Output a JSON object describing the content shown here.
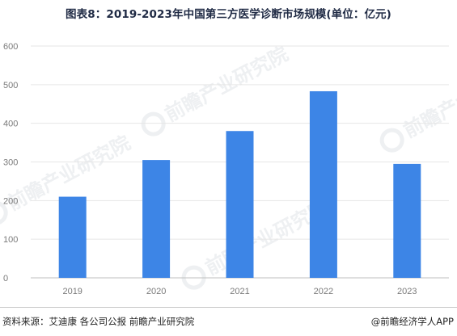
{
  "title": "图表8：2019-2023年中国第三方医学诊断市场规模(单位：亿元)",
  "watermark": "前瞻产业研究院",
  "colors": {
    "bar": "#3d85e6",
    "grid": "#e6e6e6",
    "axis": "#bfbfbf"
  },
  "chart_data": {
    "type": "bar",
    "title": "图表8：2019-2023年中国第三方医学诊断市场规模(单位：亿元)",
    "xlabel": "",
    "ylabel": "",
    "categories": [
      "2019",
      "2020",
      "2021",
      "2022",
      "2023"
    ],
    "values": [
      210,
      305,
      380,
      483,
      295
    ],
    "ylim": [
      0,
      600
    ],
    "yticks": [
      0,
      100,
      200,
      300,
      400,
      500,
      600
    ],
    "grid": true,
    "legend": "none"
  },
  "footer": {
    "source": "资料来源：艾迪康 各公司公报 前瞻产业研究院",
    "brand": "@前瞻经济学人APP"
  }
}
